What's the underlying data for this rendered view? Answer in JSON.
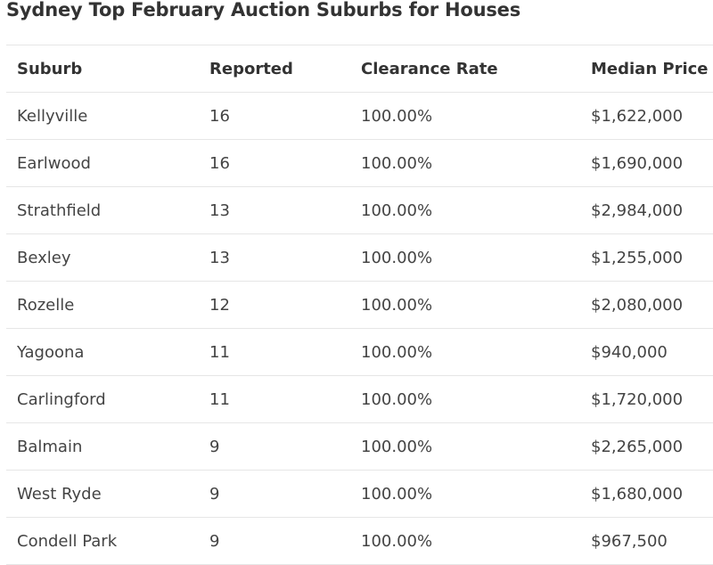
{
  "title": "Sydney Top February Auction Suburbs for Houses",
  "columns": [
    "Suburb",
    "Reported",
    "Clearance Rate",
    "Median Price"
  ],
  "rows": [
    [
      "Kellyville",
      "16",
      "100.00%",
      "$1,622,000"
    ],
    [
      "Earlwood",
      "16",
      "100.00%",
      "$1,690,000"
    ],
    [
      "Strathfield",
      "13",
      "100.00%",
      "$2,984,000"
    ],
    [
      "Bexley",
      "13",
      "100.00%",
      "$1,255,000"
    ],
    [
      "Rozelle",
      "12",
      "100.00%",
      "$2,080,000"
    ],
    [
      "Yagoona",
      "11",
      "100.00%",
      "$940,000"
    ],
    [
      "Carlingford",
      "11",
      "100.00%",
      "$1,720,000"
    ],
    [
      "Balmain",
      "9",
      "100.00%",
      "$2,265,000"
    ],
    [
      "West Ryde",
      "9",
      "100.00%",
      "$1,680,000"
    ],
    [
      "Condell Park",
      "9",
      "100.00%",
      "$967,500"
    ]
  ]
}
